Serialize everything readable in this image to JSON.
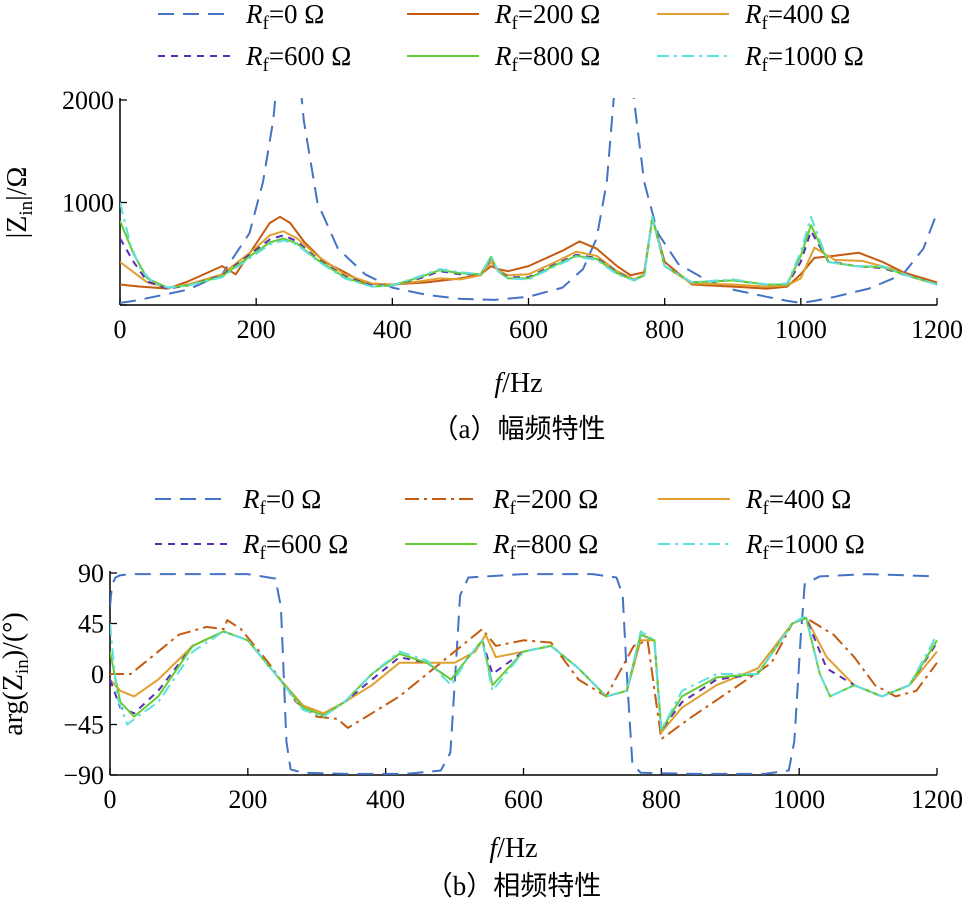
{
  "chart_data": [
    {
      "type": "line",
      "caption": "（a）幅频特性",
      "xlabel_italic": "f",
      "xlabel_unit": "/Hz",
      "ylabel_main": "|Z",
      "ylabel_sub": "in",
      "ylabel_tail": "|/Ω",
      "xlim": [
        0,
        1200
      ],
      "ylim": [
        0,
        2000
      ],
      "xticks": [
        0,
        200,
        400,
        600,
        800,
        1000,
        1200
      ],
      "yticks": [
        0,
        1000,
        2000
      ],
      "ytick_labels": [
        "",
        "1000",
        "2000"
      ],
      "grid": false,
      "legend_position": "top",
      "series": [
        {
          "name": "Rf=0 Ω",
          "color": "#4472C4",
          "dash": "16 9",
          "x": [
            0,
            20,
            50,
            100,
            150,
            190,
            210,
            225,
            235,
            240,
            250,
            260,
            270,
            290,
            320,
            360,
            400,
            450,
            500,
            550,
            600,
            650,
            680,
            700,
            715,
            725,
            735,
            745,
            755,
            770,
            790,
            820,
            860,
            900,
            950,
            980,
            1000,
            1020,
            1050,
            1100,
            1150,
            1180,
            1200
          ],
          "y": [
            20,
            40,
            80,
            150,
            300,
            700,
            1200,
            1800,
            2500,
            2500,
            2500,
            2500,
            1800,
            1000,
            550,
            300,
            170,
            100,
            60,
            50,
            80,
            170,
            350,
            650,
            1200,
            2000,
            2500,
            2500,
            2000,
            1200,
            700,
            400,
            250,
            150,
            80,
            40,
            20,
            40,
            80,
            160,
            300,
            550,
            900
          ]
        },
        {
          "name": "Rf=200 Ω",
          "color": "#C55A11",
          "dash": "",
          "x": [
            0,
            30,
            70,
            100,
            150,
            170,
            200,
            220,
            235,
            250,
            270,
            300,
            330,
            360,
            400,
            450,
            500,
            530,
            545,
            555,
            570,
            600,
            650,
            675,
            700,
            730,
            750,
            770,
            782,
            800,
            840,
            900,
            950,
            980,
            1000,
            1020,
            1050,
            1085,
            1120,
            1150,
            1200
          ],
          "y": [
            200,
            180,
            160,
            230,
            380,
            300,
            600,
            800,
            860,
            800,
            620,
            420,
            320,
            210,
            200,
            220,
            260,
            300,
            380,
            350,
            330,
            380,
            530,
            620,
            550,
            380,
            290,
            320,
            850,
            420,
            200,
            180,
            160,
            180,
            300,
            460,
            480,
            510,
            420,
            320,
            220
          ]
        },
        {
          "name": "Rf=400 Ω",
          "color": "#E0A030",
          "dash": "",
          "x": [
            0,
            20,
            40,
            70,
            100,
            150,
            200,
            220,
            240,
            260,
            290,
            330,
            370,
            400,
            440,
            470,
            500,
            530,
            545,
            555,
            570,
            600,
            640,
            670,
            700,
            730,
            755,
            770,
            782,
            800,
            840,
            900,
            950,
            980,
            1000,
            1020,
            1050,
            1090,
            1130,
            1160,
            1200
          ],
          "y": [
            420,
            320,
            220,
            170,
            200,
            300,
            560,
            680,
            720,
            650,
            480,
            300,
            210,
            200,
            230,
            260,
            250,
            290,
            420,
            340,
            290,
            300,
            420,
            520,
            480,
            330,
            250,
            300,
            850,
            380,
            210,
            200,
            180,
            190,
            260,
            560,
            440,
            430,
            360,
            280,
            200
          ]
        },
        {
          "name": "Rf=600 Ω",
          "color": "#5B2DB3",
          "dash": "7 6",
          "x": [
            0,
            20,
            40,
            70,
            100,
            150,
            200,
            220,
            240,
            260,
            290,
            330,
            370,
            400,
            440,
            470,
            500,
            530,
            545,
            555,
            570,
            600,
            640,
            670,
            700,
            730,
            755,
            770,
            782,
            800,
            840,
            900,
            950,
            980,
            1000,
            1015,
            1040,
            1080,
            1120,
            1160,
            1200
          ],
          "y": [
            650,
            420,
            230,
            160,
            190,
            290,
            540,
            640,
            680,
            620,
            450,
            280,
            190,
            190,
            260,
            330,
            300,
            300,
            460,
            330,
            270,
            270,
            400,
            490,
            460,
            320,
            240,
            290,
            860,
            380,
            220,
            240,
            200,
            200,
            420,
            720,
            430,
            380,
            360,
            280,
            200
          ]
        },
        {
          "name": "Rf=800 Ω",
          "color": "#66CC33",
          "dash": "",
          "x": [
            0,
            20,
            40,
            70,
            100,
            150,
            200,
            220,
            240,
            260,
            290,
            330,
            370,
            400,
            440,
            470,
            500,
            530,
            545,
            555,
            570,
            600,
            640,
            670,
            700,
            730,
            755,
            770,
            782,
            800,
            840,
            900,
            950,
            980,
            1000,
            1015,
            1040,
            1080,
            1120,
            1160,
            1200
          ],
          "y": [
            820,
            500,
            260,
            170,
            190,
            280,
            520,
            610,
            650,
            600,
            440,
            270,
            180,
            190,
            270,
            340,
            310,
            300,
            470,
            330,
            260,
            260,
            390,
            480,
            450,
            310,
            240,
            290,
            860,
            380,
            220,
            240,
            200,
            200,
            480,
            780,
            420,
            380,
            370,
            280,
            200
          ]
        },
        {
          "name": "Rf=1000 Ω",
          "color": "#5FE0E0",
          "dash": "12 5 3 5",
          "x": [
            0,
            15,
            30,
            50,
            70,
            100,
            150,
            200,
            220,
            240,
            260,
            290,
            330,
            370,
            400,
            440,
            470,
            500,
            530,
            545,
            555,
            570,
            600,
            640,
            670,
            700,
            730,
            755,
            770,
            782,
            800,
            840,
            900,
            950,
            980,
            1000,
            1015,
            1040,
            1080,
            1120,
            1160,
            1200
          ],
          "y": [
            1000,
            600,
            350,
            210,
            170,
            190,
            270,
            500,
            590,
            630,
            590,
            430,
            260,
            180,
            190,
            280,
            350,
            320,
            300,
            480,
            330,
            260,
            250,
            380,
            470,
            440,
            300,
            240,
            290,
            860,
            380,
            220,
            250,
            200,
            210,
            520,
            860,
            420,
            380,
            380,
            280,
            200
          ]
        }
      ]
    },
    {
      "type": "line",
      "caption": "（b）相频特性",
      "xlabel_italic": "f",
      "xlabel_unit": "/Hz",
      "ylabel_main": "arg(Z",
      "ylabel_sub": "in",
      "ylabel_tail": ")/(°)",
      "xlim": [
        0,
        1200
      ],
      "ylim": [
        -90,
        90
      ],
      "xticks": [
        0,
        200,
        400,
        600,
        800,
        1000,
        1200
      ],
      "yticks": [
        -90,
        -45,
        0,
        45,
        90
      ],
      "ytick_labels": [
        "−90",
        "−45",
        "0",
        "45",
        "90"
      ],
      "grid": false,
      "legend_position": "top",
      "series": [
        {
          "name": "Rf=0 Ω",
          "color": "#4472C4",
          "dash": "16 9",
          "x": [
            0,
            3,
            8,
            15,
            30,
            100,
            200,
            240,
            248,
            252,
            256,
            262,
            280,
            350,
            430,
            480,
            494,
            499,
            503,
            508,
            520,
            600,
            700,
            735,
            744,
            749,
            753,
            758,
            770,
            850,
            950,
            985,
            993,
            998,
            1002,
            1008,
            1030,
            1100,
            1200
          ],
          "y": [
            60,
            80,
            86,
            88,
            89,
            89,
            89,
            85,
            60,
            0,
            -60,
            -85,
            -88,
            -89,
            -89,
            -86,
            -70,
            -20,
            20,
            70,
            86,
            89,
            89,
            86,
            70,
            10,
            -30,
            -80,
            -88,
            -89,
            -89,
            -86,
            -60,
            -10,
            30,
            80,
            87,
            89,
            87
          ]
        },
        {
          "name": "Rf=200 Ω",
          "color": "#C55A11",
          "dash": "14 5 3 5",
          "x": [
            0,
            30,
            60,
            100,
            140,
            165,
            170,
            190,
            230,
            270,
            300,
            330,
            345,
            380,
            420,
            480,
            520,
            540,
            560,
            600,
            640,
            680,
            720,
            760,
            780,
            800,
            840,
            900,
            960,
            990,
            1010,
            1050,
            1080,
            1110,
            1140,
            1170,
            1200
          ],
          "y": [
            0,
            0,
            15,
            35,
            42,
            40,
            48,
            40,
            10,
            -25,
            -38,
            -40,
            -48,
            -35,
            -20,
            10,
            30,
            40,
            25,
            30,
            28,
            -5,
            -20,
            25,
            30,
            -58,
            -40,
            -15,
            10,
            45,
            50,
            35,
            15,
            -10,
            -20,
            -15,
            10
          ]
        },
        {
          "name": "Rf=400 Ω",
          "color": "#E0A030",
          "dash": "",
          "x": [
            0,
            15,
            35,
            70,
            120,
            165,
            200,
            240,
            280,
            310,
            340,
            380,
            420,
            460,
            500,
            530,
            545,
            560,
            600,
            640,
            680,
            720,
            750,
            770,
            790,
            800,
            830,
            880,
            940,
            990,
            1010,
            1040,
            1080,
            1120,
            1160,
            1200
          ],
          "y": [
            -5,
            -15,
            -20,
            -5,
            25,
            38,
            30,
            0,
            -28,
            -35,
            -25,
            -10,
            10,
            10,
            10,
            20,
            35,
            15,
            20,
            25,
            5,
            -20,
            -15,
            30,
            30,
            -52,
            -30,
            -10,
            5,
            45,
            50,
            15,
            -10,
            -20,
            -10,
            20
          ]
        },
        {
          "name": "Rf=600 Ω",
          "color": "#5B2DB3",
          "dash": "7 6",
          "x": [
            0,
            15,
            35,
            70,
            120,
            165,
            200,
            240,
            280,
            310,
            340,
            380,
            420,
            460,
            495,
            520,
            540,
            555,
            600,
            640,
            680,
            720,
            750,
            770,
            790,
            800,
            830,
            880,
            940,
            990,
            1010,
            1040,
            1080,
            1120,
            1160,
            1200
          ],
          "y": [
            -5,
            -30,
            -35,
            -15,
            25,
            38,
            30,
            0,
            -30,
            -37,
            -25,
            -5,
            15,
            10,
            -5,
            15,
            30,
            0,
            20,
            25,
            5,
            -20,
            -15,
            35,
            30,
            -50,
            -25,
            -5,
            0,
            45,
            50,
            5,
            -10,
            -20,
            -10,
            28
          ]
        },
        {
          "name": "Rf=800 Ω",
          "color": "#66CC33",
          "dash": "",
          "x": [
            0,
            15,
            35,
            70,
            120,
            165,
            200,
            240,
            280,
            310,
            340,
            380,
            420,
            460,
            495,
            520,
            540,
            555,
            600,
            640,
            680,
            720,
            750,
            770,
            790,
            800,
            830,
            880,
            940,
            990,
            1010,
            1030,
            1045,
            1080,
            1120,
            1160,
            1200
          ],
          "y": [
            20,
            -25,
            -38,
            -20,
            25,
            38,
            30,
            0,
            -30,
            -37,
            -25,
            0,
            18,
            10,
            -5,
            15,
            30,
            -10,
            20,
            25,
            5,
            -20,
            -15,
            35,
            30,
            -50,
            -20,
            -3,
            0,
            45,
            50,
            0,
            -20,
            -10,
            -20,
            -10,
            30
          ]
        },
        {
          "name": "Rf=1000 Ω",
          "color": "#5FE0E0",
          "dash": "12 5 3 5",
          "x": [
            0,
            10,
            25,
            40,
            70,
            120,
            165,
            200,
            240,
            280,
            310,
            340,
            380,
            420,
            460,
            495,
            520,
            540,
            555,
            600,
            640,
            680,
            720,
            750,
            770,
            790,
            800,
            830,
            880,
            940,
            990,
            1010,
            1030,
            1045,
            1080,
            1120,
            1160,
            1200
          ],
          "y": [
            45,
            -20,
            -45,
            -38,
            -25,
            20,
            38,
            30,
            0,
            -32,
            -38,
            -25,
            0,
            20,
            12,
            -10,
            15,
            30,
            -15,
            20,
            25,
            5,
            -20,
            -15,
            38,
            30,
            -50,
            -15,
            0,
            0,
            45,
            52,
            0,
            -20,
            -10,
            -20,
            -10,
            35
          ]
        }
      ]
    }
  ]
}
